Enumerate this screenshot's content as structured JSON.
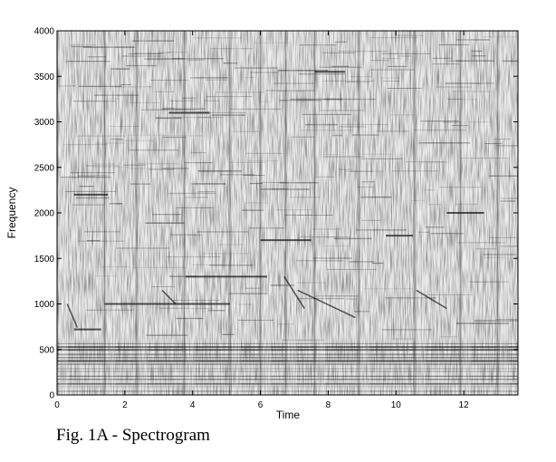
{
  "chart_data": {
    "type": "heatmap",
    "colormap": "gray-inverted",
    "xlabel": "Time",
    "ylabel": "Frequency",
    "xlim": [
      0,
      13.6
    ],
    "ylim": [
      0,
      4000
    ],
    "xticks": [
      0,
      2,
      4,
      6,
      8,
      10,
      12
    ],
    "yticks": [
      0,
      500,
      1000,
      1500,
      2000,
      2500,
      3000,
      3500,
      4000
    ],
    "xtick_labels": [
      "0",
      "2",
      "4",
      "6",
      "8",
      "10",
      "12"
    ],
    "ytick_labels": [
      "0",
      "500",
      "1000",
      "1500",
      "2000",
      "2500",
      "3000",
      "3500",
      "4000"
    ],
    "onset_times": [
      0.0,
      1.4,
      2.35,
      3.75,
      5.1,
      6.0,
      6.75,
      7.6,
      8.9,
      10.55,
      11.9,
      13.0
    ],
    "sustained_partials": [
      {
        "freq": 720,
        "t_start": 0.5,
        "t_end": 1.3
      },
      {
        "freq": 1000,
        "t_start": 1.4,
        "t_end": 5.1
      },
      {
        "freq": 1300,
        "t_start": 3.8,
        "t_end": 6.2
      },
      {
        "freq": 1700,
        "t_start": 6.0,
        "t_end": 7.5
      },
      {
        "freq": 2200,
        "t_start": 0.5,
        "t_end": 1.5
      },
      {
        "freq": 1750,
        "t_start": 9.7,
        "t_end": 10.5
      },
      {
        "freq": 2000,
        "t_start": 11.5,
        "t_end": 12.6
      },
      {
        "freq": 3100,
        "t_start": 3.3,
        "t_end": 4.5
      },
      {
        "freq": 3550,
        "t_start": 7.6,
        "t_end": 8.5
      }
    ],
    "glides": [
      {
        "t_start": 0.3,
        "f_start": 1000,
        "t_end": 0.6,
        "f_end": 740
      },
      {
        "t_start": 7.1,
        "f_start": 1150,
        "t_end": 8.8,
        "f_end": 850
      },
      {
        "t_start": 10.6,
        "f_start": 1150,
        "t_end": 11.5,
        "f_end": 950
      },
      {
        "t_start": 3.1,
        "f_start": 1150,
        "t_end": 3.5,
        "f_end": 1000
      },
      {
        "t_start": 6.7,
        "f_start": 1300,
        "t_end": 7.3,
        "f_end": 950
      }
    ],
    "caption": "Fig. 1A - Spectrogram"
  }
}
